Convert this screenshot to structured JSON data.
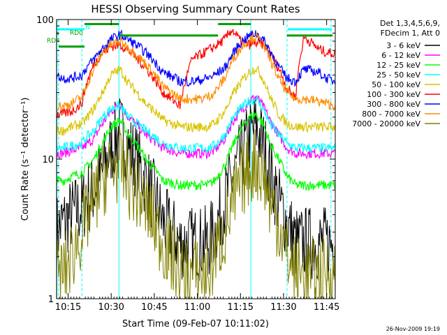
{
  "chart_data": {
    "type": "line",
    "title": "HESSI Observing Summary Count Rates",
    "xlabel": "Start Time (09-Feb-07 10:11:02)",
    "ylabel": "Count Rate (s⁻¹ detector⁻¹)",
    "footer": "26-Nov-2009 19:19",
    "xlim": [
      10.183,
      11.8
    ],
    "ylim": [
      1,
      100
    ],
    "y_scale": "log",
    "x_ticks": [
      "10:15",
      "10:30",
      "10:45",
      "11:00",
      "11:15",
      "11:30",
      "11:45"
    ],
    "y_ticks": [
      "1",
      "10",
      "100"
    ],
    "legend": {
      "position": "right",
      "header": [
        "Det 1,3,4,5,6,9,",
        "FDecim 1, Att 0"
      ]
    },
    "series": [
      {
        "name": "3 - 6 keV",
        "color": "#000000",
        "x": [
          10.18,
          10.22,
          10.27,
          10.33,
          10.35,
          10.4,
          10.45,
          10.5,
          10.55,
          10.6,
          10.7,
          10.8,
          10.9,
          10.97,
          11.02,
          11.06,
          11.1,
          11.16,
          11.2,
          11.25,
          11.3,
          11.34,
          11.38,
          11.42,
          11.47,
          11.52,
          11.57,
          11.62,
          11.7,
          11.75,
          11.8
        ],
        "y": [
          3,
          3.5,
          4,
          4.5,
          5,
          6,
          8,
          12,
          16,
          12,
          7,
          3.5,
          2.5,
          2.5,
          2.5,
          2.5,
          3,
          5,
          7,
          10,
          14,
          17,
          13,
          8,
          5,
          3.5,
          2.5,
          2.5,
          2.5,
          2.5,
          2.5
        ]
      },
      {
        "name": "6 - 12 keV",
        "color": "#ff00ff",
        "x": [
          10.18,
          10.22,
          10.27,
          10.33,
          10.35,
          10.4,
          10.45,
          10.5,
          10.55,
          10.6,
          10.7,
          10.8,
          10.9,
          10.97,
          11.02,
          11.06,
          11.1,
          11.16,
          11.2,
          11.25,
          11.3,
          11.34,
          11.38,
          11.42,
          11.47,
          11.52,
          11.57,
          11.62,
          11.7,
          11.75,
          11.8
        ],
        "y": [
          11,
          11,
          11.5,
          12,
          12.5,
          14,
          18,
          22,
          25,
          20,
          15,
          12,
          11,
          11,
          11,
          11,
          11.5,
          14,
          18,
          22,
          26,
          28,
          24,
          19,
          15,
          12,
          11,
          11,
          11,
          11,
          11
        ]
      },
      {
        "name": "12 - 25 keV",
        "color": "#00ff00",
        "x": [
          10.18,
          10.22,
          10.27,
          10.33,
          10.35,
          10.4,
          10.45,
          10.5,
          10.55,
          10.6,
          10.7,
          10.8,
          10.9,
          10.97,
          11.02,
          11.06,
          11.1,
          11.16,
          11.2,
          11.25,
          11.3,
          11.34,
          11.38,
          11.42,
          11.47,
          11.52,
          11.57,
          11.62,
          11.7,
          11.75,
          11.8
        ],
        "y": [
          7,
          7,
          7.5,
          8,
          8.5,
          10,
          13,
          17,
          19,
          15,
          10,
          7,
          6.5,
          6.5,
          6.5,
          6.5,
          7,
          9,
          12,
          16,
          20,
          21,
          18,
          13,
          10,
          7.5,
          6.5,
          6.5,
          6.5,
          6.5,
          6.5
        ]
      },
      {
        "name": "25 - 50 keV",
        "color": "#00ffff",
        "x": [
          10.18,
          10.22,
          10.27,
          10.33,
          10.35,
          10.4,
          10.45,
          10.5,
          10.55,
          10.6,
          10.7,
          10.8,
          10.9,
          10.97,
          11.02,
          11.06,
          11.1,
          11.16,
          11.2,
          11.25,
          11.3,
          11.34,
          11.38,
          11.42,
          11.47,
          11.52,
          11.57,
          11.62,
          11.7,
          11.75,
          11.8
        ],
        "y": [
          12,
          12,
          12.5,
          13,
          14,
          16,
          20,
          23,
          24,
          20,
          16,
          13,
          12,
          12,
          12,
          12,
          12.5,
          15,
          19,
          23,
          26,
          27,
          23,
          18,
          15,
          13,
          12,
          12,
          12,
          12,
          12
        ]
      },
      {
        "name": "50 - 100 keV",
        "color": "#d9c400",
        "x": [
          10.18,
          10.22,
          10.27,
          10.33,
          10.35,
          10.4,
          10.45,
          10.5,
          10.55,
          10.6,
          10.7,
          10.8,
          10.9,
          10.97,
          11.02,
          11.06,
          11.1,
          11.16,
          11.2,
          11.25,
          11.3,
          11.34,
          11.38,
          11.42,
          11.47,
          11.52,
          11.57,
          11.62,
          11.7,
          11.75,
          11.8
        ],
        "y": [
          16,
          16,
          17,
          18,
          19,
          23,
          30,
          40,
          44,
          35,
          25,
          19,
          17,
          17,
          17,
          17,
          18,
          22,
          28,
          35,
          42,
          45,
          38,
          28,
          21,
          18,
          17,
          17,
          17,
          17,
          17
        ]
      },
      {
        "name": "100 - 300 keV",
        "color": "#ff0000",
        "x": [
          10.18,
          10.22,
          10.27,
          10.33,
          10.35,
          10.4,
          10.45,
          10.5,
          10.55,
          10.6,
          10.7,
          10.8,
          10.9,
          10.97,
          11.02,
          11.06,
          11.1,
          11.16,
          11.2,
          11.25,
          11.3,
          11.34,
          11.38,
          11.42,
          11.47,
          11.52,
          11.57,
          11.62,
          11.7,
          11.75,
          11.8
        ],
        "y": [
          21,
          21,
          22,
          25,
          32,
          48,
          58,
          64,
          66,
          60,
          45,
          30,
          24,
          52,
          56,
          60,
          64,
          72,
          85,
          70,
          66,
          68,
          66,
          58,
          45,
          32,
          28,
          75,
          62,
          58,
          57
        ]
      },
      {
        "name": "300 - 800 keV",
        "color": "#0000ff",
        "x": [
          10.18,
          10.22,
          10.27,
          10.33,
          10.35,
          10.4,
          10.45,
          10.5,
          10.55,
          10.6,
          10.7,
          10.8,
          10.9,
          10.97,
          11.02,
          11.06,
          11.1,
          11.16,
          11.2,
          11.25,
          11.3,
          11.34,
          11.38,
          11.42,
          11.47,
          11.52,
          11.57,
          11.62,
          11.7,
          11.75,
          11.8
        ],
        "y": [
          40,
          38,
          38,
          40,
          44,
          52,
          62,
          72,
          78,
          72,
          58,
          42,
          36,
          36,
          37,
          38,
          40,
          45,
          55,
          68,
          76,
          80,
          72,
          60,
          46,
          38,
          36,
          44,
          42,
          38,
          36
        ]
      },
      {
        "name": "800 - 7000 keV",
        "color": "#ff8c00",
        "x": [
          10.18,
          10.22,
          10.27,
          10.33,
          10.35,
          10.4,
          10.45,
          10.5,
          10.55,
          10.6,
          10.7,
          10.8,
          10.9,
          10.97,
          11.02,
          11.06,
          11.1,
          11.16,
          11.2,
          11.25,
          11.3,
          11.34,
          11.38,
          11.42,
          11.47,
          11.52,
          11.57,
          11.62,
          11.7,
          11.75,
          11.8
        ],
        "y": [
          24,
          24,
          25,
          28,
          32,
          44,
          58,
          66,
          70,
          63,
          48,
          33,
          27,
          27,
          27,
          28,
          30,
          38,
          50,
          62,
          72,
          75,
          66,
          52,
          38,
          30,
          27,
          27,
          26,
          25,
          24
        ]
      },
      {
        "name": "7000 - 20000 keV",
        "color": "#808000",
        "x": [
          10.18,
          10.22,
          10.27,
          10.33,
          10.35,
          10.4,
          10.45,
          10.5,
          10.55,
          10.6,
          10.7,
          10.8,
          10.9,
          10.97,
          11.02,
          11.06,
          11.1,
          11.16,
          11.2,
          11.25,
          11.3,
          11.34,
          11.38,
          11.42,
          11.47,
          11.52,
          11.57,
          11.62,
          11.7,
          11.75,
          11.8
        ],
        "y": [
          1.5,
          1.5,
          2,
          3,
          3.5,
          5,
          7,
          8.5,
          9,
          7,
          4.5,
          2.5,
          1.5,
          1.5,
          1.5,
          1.5,
          2,
          3,
          4.5,
          6.5,
          8.5,
          9.5,
          8,
          5,
          3.5,
          2,
          1.5,
          1.5,
          1.5,
          1.5,
          1.5
        ]
      }
    ],
    "top_markers": [
      {
        "label": "RD0",
        "color": "#00a000"
      },
      {
        "label": "RD4",
        "color": "#00a000"
      },
      {
        "label": "N",
        "color": "#00ffff"
      }
    ],
    "vertical_markers": {
      "color": "#00ffff"
    }
  }
}
